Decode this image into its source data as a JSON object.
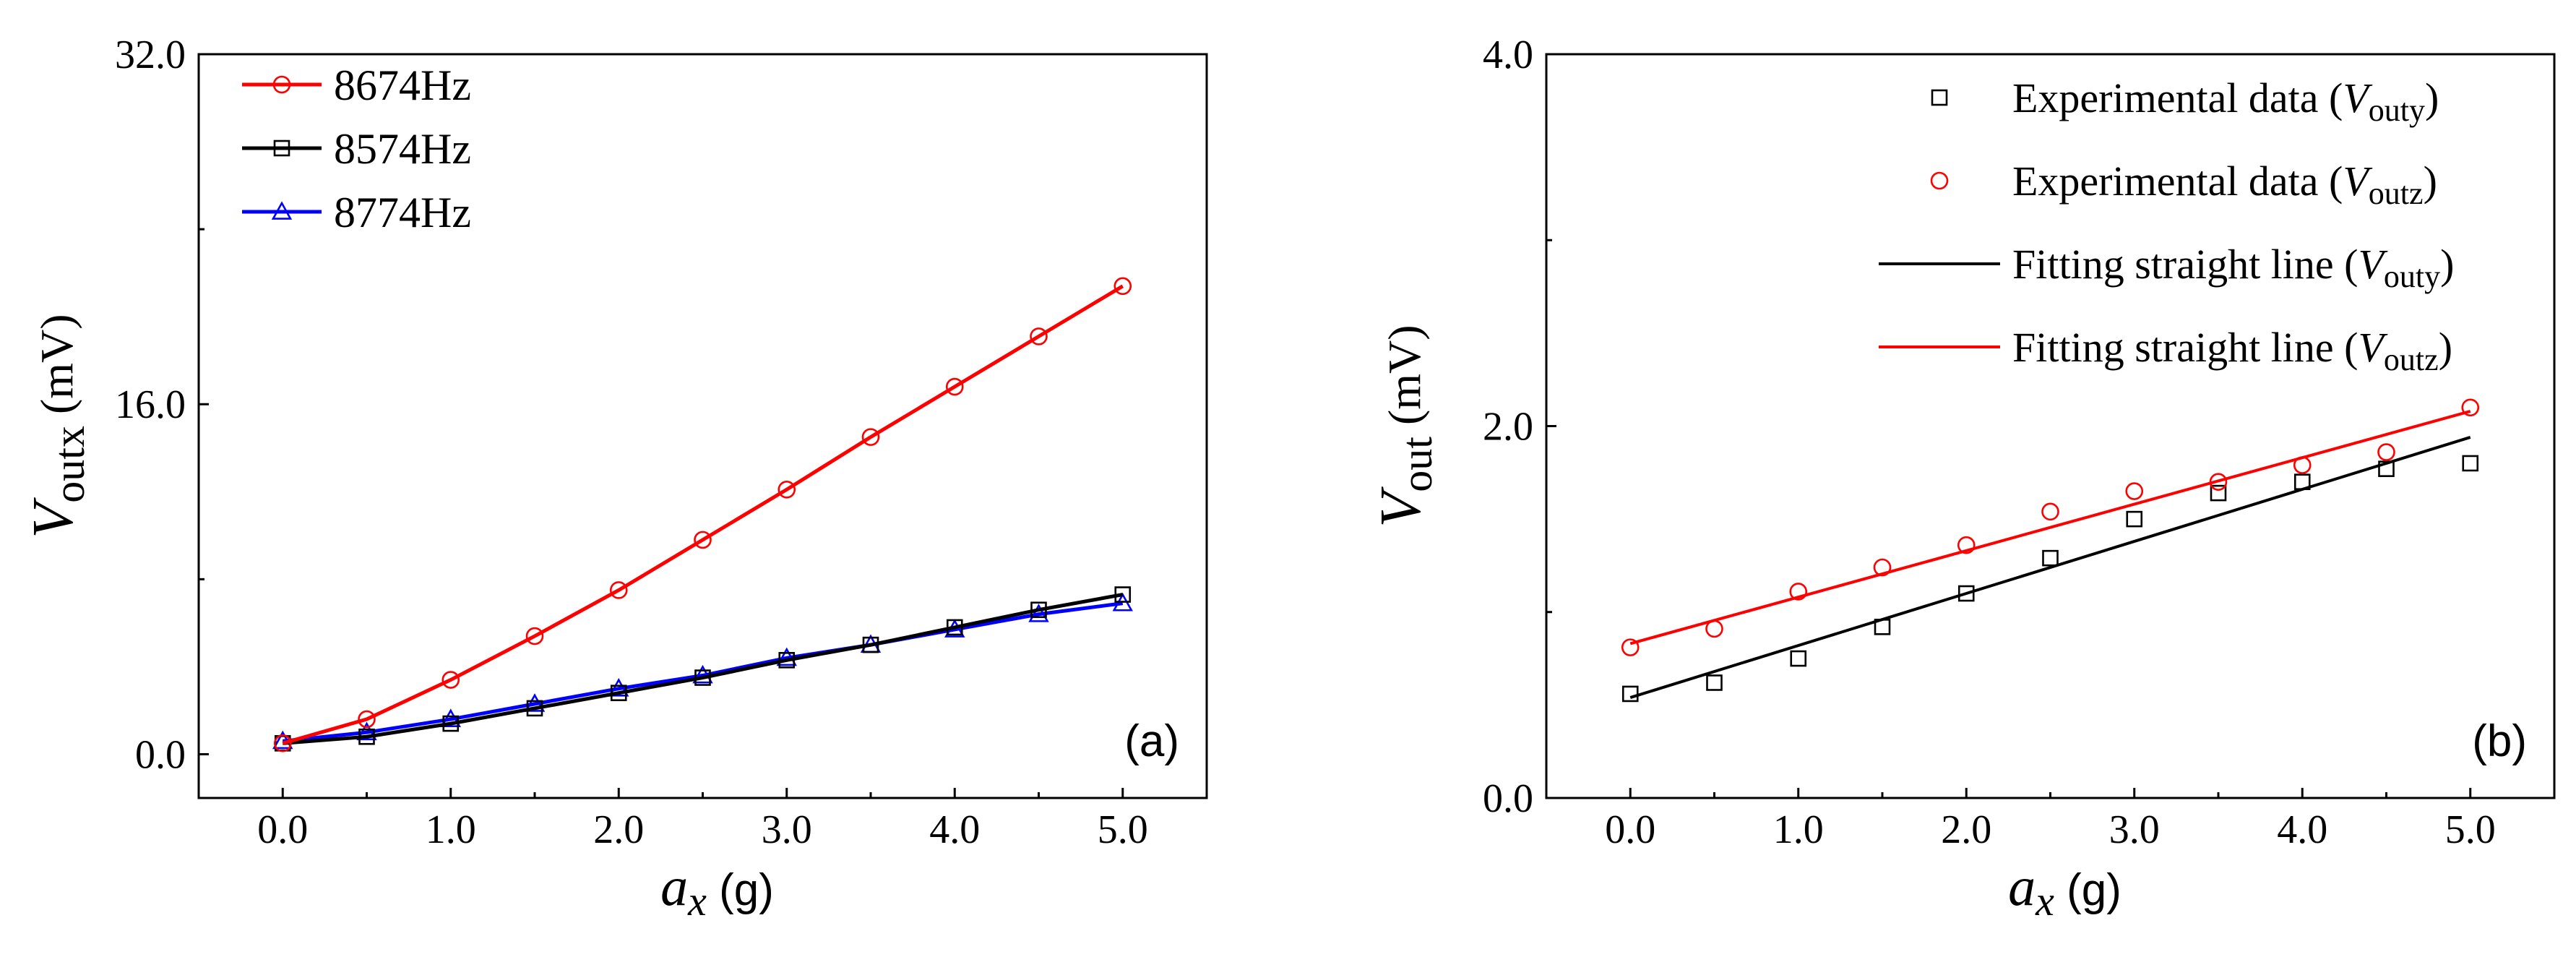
{
  "chart_data": [
    {
      "type": "line",
      "panel_label": "(a)",
      "xlabel": {
        "symbol": "a",
        "subscript": "x",
        "unit": "(g)"
      },
      "ylabel": {
        "symbol": "V",
        "subscript": "outx",
        "unit": "(mV)"
      },
      "xlim": [
        -0.5,
        5.5
      ],
      "ylim": [
        -2,
        32
      ],
      "xticks": [
        0,
        1,
        2,
        3,
        4,
        5
      ],
      "xtick_labels": [
        "0.0",
        "1.0",
        "2.0",
        "3.0",
        "4.0",
        "5.0"
      ],
      "yticks": [
        0,
        16,
        32
      ],
      "ytick_labels": [
        "0.0",
        "16.0",
        "32.0"
      ],
      "x": [
        0,
        0.5,
        1,
        1.5,
        2,
        2.5,
        3,
        3.5,
        4,
        4.5,
        5
      ],
      "series": [
        {
          "name": "8674Hz",
          "color": "#ff0000",
          "marker": "circle",
          "values": [
            0.5,
            1.6,
            3.4,
            5.4,
            7.5,
            9.8,
            12.1,
            14.5,
            16.8,
            19.1,
            21.4
          ]
        },
        {
          "name": "8574Hz",
          "color": "#000000",
          "marker": "square",
          "values": [
            0.5,
            0.8,
            1.4,
            2.1,
            2.8,
            3.5,
            4.3,
            5.0,
            5.8,
            6.6,
            7.3
          ]
        },
        {
          "name": "8774Hz",
          "color": "#0000ff",
          "marker": "triangle",
          "values": [
            0.6,
            1.0,
            1.6,
            2.3,
            3.0,
            3.6,
            4.4,
            5.0,
            5.7,
            6.4,
            6.9
          ]
        }
      ]
    },
    {
      "type": "scatter",
      "panel_label": "(b)",
      "xlabel": {
        "symbol": "a",
        "subscript": "x",
        "unit": "(g)"
      },
      "ylabel": {
        "symbol": "V",
        "subscript": "out",
        "unit": "(mV)"
      },
      "xlim": [
        -0.5,
        5.5
      ],
      "ylim": [
        0,
        4
      ],
      "xticks": [
        0,
        1,
        2,
        3,
        4,
        5
      ],
      "xtick_labels": [
        "0.0",
        "1.0",
        "2.0",
        "3.0",
        "4.0",
        "5.0"
      ],
      "yticks": [
        0,
        2,
        4
      ],
      "ytick_labels": [
        "0.0",
        "2.0",
        "4.0"
      ],
      "x": [
        0,
        0.5,
        1,
        1.5,
        2,
        2.5,
        3,
        3.5,
        4,
        4.5,
        5
      ],
      "series": [
        {
          "name": "Experimental data (Vouty)",
          "legend_text": "Experimental data (",
          "legend_symbol": "V",
          "legend_sub": "outy",
          "legend_close": ")",
          "kind": "points",
          "color": "#000000",
          "marker": "square",
          "values": [
            0.56,
            0.62,
            0.75,
            0.92,
            1.1,
            1.29,
            1.5,
            1.64,
            1.7,
            1.77,
            1.8
          ]
        },
        {
          "name": "Experimental data (Voutz)",
          "legend_text": "Experimental data (",
          "legend_symbol": "V",
          "legend_sub": "outz",
          "legend_close": ")",
          "kind": "points",
          "color": "#ff0000",
          "marker": "circle",
          "values": [
            0.81,
            0.91,
            1.11,
            1.24,
            1.36,
            1.54,
            1.65,
            1.7,
            1.79,
            1.86,
            2.1
          ]
        },
        {
          "name": "Fitting straight line (Vouty)",
          "legend_text": "Fitting straight line (",
          "legend_symbol": "V",
          "legend_sub": "outy",
          "legend_close": ")",
          "kind": "fit",
          "color": "#000000",
          "x_range": [
            0,
            5
          ],
          "y_range": [
            0.54,
            1.94
          ]
        },
        {
          "name": "Fitting straight line (Voutz)",
          "legend_text": "Fitting straight line (",
          "legend_symbol": "V",
          "legend_sub": "outz",
          "legend_close": ")",
          "kind": "fit",
          "color": "#ff0000",
          "x_range": [
            0,
            5
          ],
          "y_range": [
            0.83,
            2.08
          ]
        }
      ]
    }
  ]
}
